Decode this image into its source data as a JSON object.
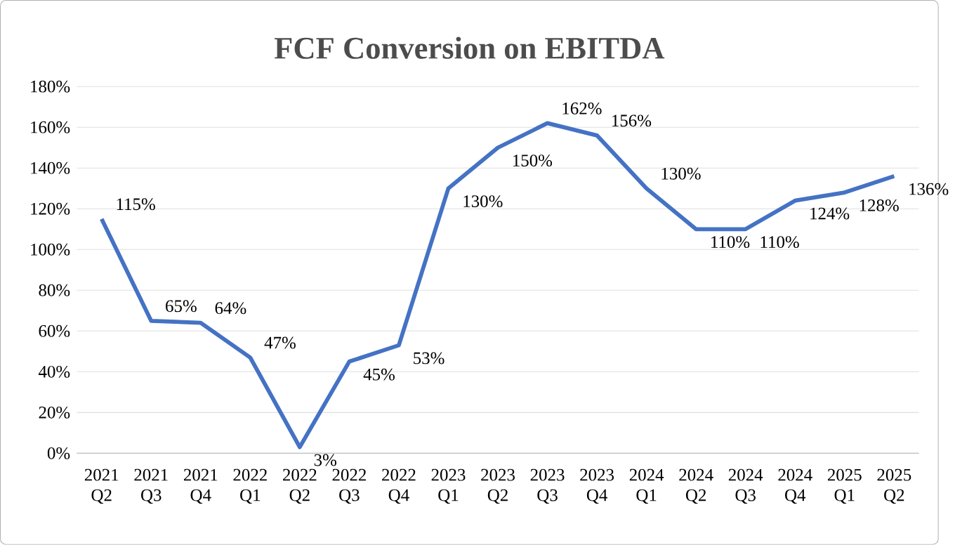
{
  "chart_data": {
    "type": "line",
    "title": "FCF Conversion on EBITDA",
    "categories": [
      "2021 Q2",
      "2021 Q3",
      "2021 Q4",
      "2022 Q1",
      "2022 Q2",
      "2022 Q3",
      "2022 Q4",
      "2023 Q1",
      "2023 Q2",
      "2023 Q3",
      "2023 Q4",
      "2024 Q1",
      "2024 Q2",
      "2024 Q3",
      "2024 Q4",
      "2025 Q1",
      "2025 Q2"
    ],
    "values": [
      115,
      65,
      64,
      47,
      3,
      45,
      53,
      130,
      150,
      162,
      156,
      130,
      110,
      110,
      124,
      128,
      136
    ],
    "value_labels": [
      "115%",
      "65%",
      "64%",
      "47%",
      "3%",
      "45%",
      "53%",
      "130%",
      "150%",
      "162%",
      "156%",
      "130%",
      "110%",
      "110%",
      "124%",
      "128%",
      "136%"
    ],
    "color": "#4472c4",
    "ylim": [
      0,
      180
    ],
    "yticks": [
      {
        "value": 0,
        "label": "0%"
      },
      {
        "value": 20,
        "label": "20%"
      },
      {
        "value": 40,
        "label": "40%"
      },
      {
        "value": 60,
        "label": "60%"
      },
      {
        "value": 80,
        "label": "80%"
      },
      {
        "value": 100,
        "label": "100%"
      },
      {
        "value": 120,
        "label": "120%"
      },
      {
        "value": 140,
        "label": "140%"
      },
      {
        "value": 160,
        "label": "160%"
      },
      {
        "value": 180,
        "label": "180%"
      }
    ],
    "grid": "y",
    "marker": "none",
    "line_style": "solid"
  }
}
